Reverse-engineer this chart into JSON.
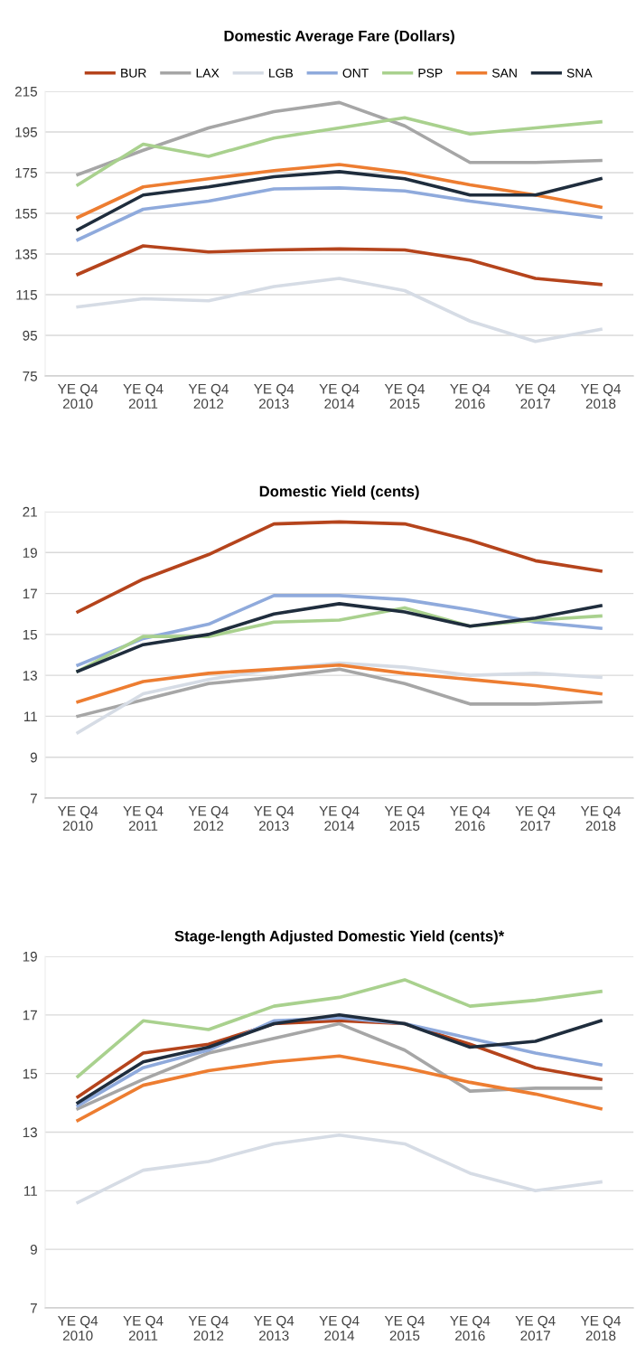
{
  "chart_data": [
    {
      "type": "line",
      "title": "Domestic Average Fare (Dollars)",
      "categories": [
        "YE Q4\n2010",
        "YE Q4\n2011",
        "YE Q4\n2012",
        "YE Q4\n2013",
        "YE Q4\n2014",
        "YE Q4\n2015",
        "YE Q4\n2016",
        "YE Q4\n2017",
        "YE Q4\n2018"
      ],
      "ylim": [
        75,
        215
      ],
      "yticks": [
        75,
        95,
        115,
        135,
        155,
        175,
        195,
        215
      ],
      "grid": "y",
      "legend": "top",
      "series": [
        {
          "name": "BUR",
          "color": "#b5441c",
          "values": [
            125,
            139,
            136,
            137,
            137.5,
            137,
            132,
            123,
            120
          ]
        },
        {
          "name": "LAX",
          "color": "#a6a6a6",
          "values": [
            174,
            186,
            197,
            205,
            209.5,
            198,
            180,
            180,
            181
          ]
        },
        {
          "name": "LGB",
          "color": "#d6dce5",
          "values": [
            109,
            113,
            112,
            119,
            123,
            117,
            102,
            92,
            98
          ]
        },
        {
          "name": "ONT",
          "color": "#8faadc",
          "values": [
            142,
            157,
            161,
            167,
            167.5,
            166,
            161,
            157,
            153
          ]
        },
        {
          "name": "PSP",
          "color": "#a9d18e",
          "values": [
            169,
            189,
            183,
            192,
            197,
            202,
            194,
            197,
            200
          ]
        },
        {
          "name": "SAN",
          "color": "#ed7d31",
          "values": [
            153,
            168,
            172,
            176,
            179,
            175,
            169,
            164,
            158
          ]
        },
        {
          "name": "SNA",
          "color": "#1f2d3d",
          "values": [
            147,
            164,
            168,
            173,
            175.5,
            172,
            164,
            164,
            172
          ]
        }
      ]
    },
    {
      "type": "line",
      "title": "Domestic Yield (cents)",
      "categories": [
        "YE Q4\n2010",
        "YE Q4\n2011",
        "YE Q4\n2012",
        "YE Q4\n2013",
        "YE Q4\n2014",
        "YE Q4\n2015",
        "YE Q4\n2016",
        "YE Q4\n2017",
        "YE Q4\n2018"
      ],
      "ylim": [
        7,
        21
      ],
      "yticks": [
        7,
        9,
        11,
        13,
        15,
        17,
        19,
        21
      ],
      "grid": "y",
      "series": [
        {
          "color": "#b5441c",
          "values": [
            16.1,
            17.7,
            18.9,
            20.4,
            20.5,
            20.4,
            19.6,
            18.6,
            18.1
          ]
        },
        {
          "color": "#a6a6a6",
          "values": [
            11.0,
            11.8,
            12.6,
            12.9,
            13.3,
            12.6,
            11.6,
            11.6,
            11.7
          ]
        },
        {
          "color": "#d6dce5",
          "values": [
            10.2,
            12.1,
            12.8,
            13.3,
            13.6,
            13.4,
            13.0,
            13.1,
            12.9
          ]
        },
        {
          "color": "#8faadc",
          "values": [
            13.5,
            14.8,
            15.5,
            16.9,
            16.9,
            16.7,
            16.2,
            15.6,
            15.3
          ]
        },
        {
          "color": "#a9d18e",
          "values": [
            13.2,
            14.9,
            14.9,
            15.6,
            15.7,
            16.3,
            15.4,
            15.7,
            15.9
          ]
        },
        {
          "color": "#ed7d31",
          "values": [
            11.7,
            12.7,
            13.1,
            13.3,
            13.5,
            13.1,
            12.8,
            12.5,
            12.1
          ]
        },
        {
          "color": "#1f2d3d",
          "values": [
            13.2,
            14.5,
            15.0,
            16.0,
            16.5,
            16.1,
            15.4,
            15.8,
            16.4
          ]
        }
      ]
    },
    {
      "type": "line",
      "title": "Stage-length Adjusted Domestic Yield (cents)*",
      "categories": [
        "YE Q4\n2010",
        "YE Q4\n2011",
        "YE Q4\n2012",
        "YE Q4\n2013",
        "YE Q4\n2014",
        "YE Q4\n2015",
        "YE Q4\n2016",
        "YE Q4\n2017",
        "YE Q4\n2018"
      ],
      "ylim": [
        7,
        19
      ],
      "yticks": [
        7,
        9,
        11,
        13,
        15,
        17,
        19
      ],
      "grid": "y",
      "series": [
        {
          "color": "#b5441c",
          "values": [
            14.2,
            15.7,
            16.0,
            16.7,
            16.8,
            16.7,
            16.0,
            15.2,
            14.8
          ]
        },
        {
          "color": "#a6a6a6",
          "values": [
            13.8,
            14.8,
            15.7,
            16.2,
            16.7,
            15.8,
            14.4,
            14.5,
            14.5
          ]
        },
        {
          "color": "#d6dce5",
          "values": [
            10.6,
            11.7,
            12.0,
            12.6,
            12.9,
            12.6,
            11.6,
            11.0,
            11.3
          ]
        },
        {
          "color": "#8faadc",
          "values": [
            13.9,
            15.2,
            15.8,
            16.8,
            16.9,
            16.7,
            16.2,
            15.7,
            15.3
          ]
        },
        {
          "color": "#a9d18e",
          "values": [
            14.9,
            16.8,
            16.5,
            17.3,
            17.6,
            18.2,
            17.3,
            17.5,
            17.8
          ]
        },
        {
          "color": "#ed7d31",
          "values": [
            13.4,
            14.6,
            15.1,
            15.4,
            15.6,
            15.2,
            14.7,
            14.3,
            13.8
          ]
        },
        {
          "color": "#1f2d3d",
          "values": [
            14.0,
            15.4,
            15.9,
            16.7,
            17.0,
            16.7,
            15.9,
            16.1,
            16.8
          ]
        }
      ]
    }
  ]
}
